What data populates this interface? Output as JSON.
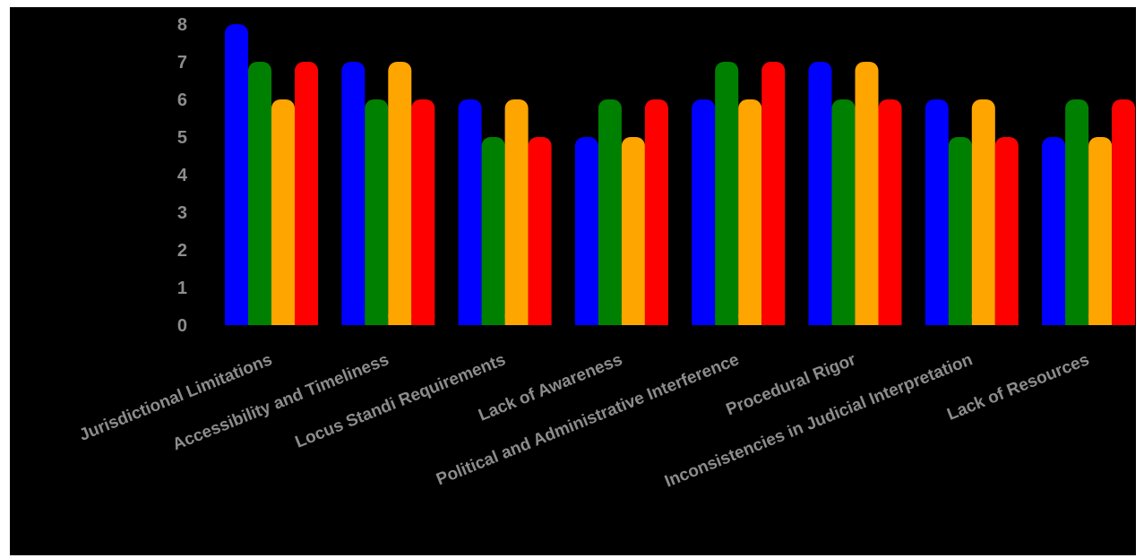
{
  "chart_data": {
    "type": "bar",
    "categories": [
      "Jurisdictional Limitations",
      "Accessibility and Timeliness",
      "Locus Standi Requirements",
      "Lack of Awareness",
      "Political and Administrative Interference",
      "Procedural Rigor",
      "Inconsistencies in Judicial Interpretation",
      "Lack of Resources"
    ],
    "series": [
      {
        "color": "#0000ff",
        "values": [
          8,
          7,
          6,
          5,
          6,
          7,
          6,
          5
        ]
      },
      {
        "color": "#008000",
        "values": [
          7,
          6,
          5,
          6,
          7,
          6,
          5,
          6
        ]
      },
      {
        "color": "#ffa500",
        "values": [
          6,
          7,
          6,
          5,
          6,
          7,
          6,
          5
        ]
      },
      {
        "color": "#ff0000",
        "values": [
          7,
          6,
          5,
          6,
          7,
          6,
          5,
          6
        ]
      }
    ],
    "yticks": [
      "0",
      "1",
      "2",
      "3",
      "4",
      "5",
      "6",
      "7",
      "8"
    ],
    "ylim": [
      0,
      8
    ],
    "grid": false,
    "legend": "none",
    "background": "#000000"
  }
}
